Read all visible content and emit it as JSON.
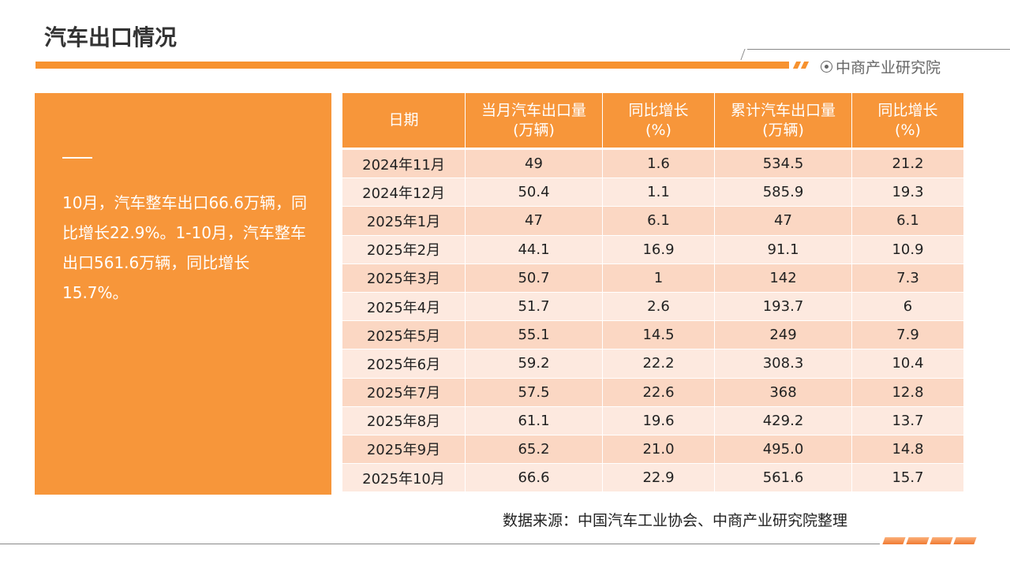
{
  "header": {
    "title": "汽车出口情况",
    "brand": "中商产业研究院"
  },
  "summary": "10月，汽车整车出口66.6万辆，同比增长22.9%。1-10月，汽车整车出口561.6万辆，同比增长15.7%。",
  "table": {
    "headers": [
      [
        "日期"
      ],
      [
        "当月汽车出口量",
        "(万辆)"
      ],
      [
        "同比增长",
        "(%)"
      ],
      [
        "累计汽车出口量",
        "(万辆)"
      ],
      [
        "同比增长",
        "(%)"
      ]
    ],
    "rows": [
      [
        "2024年11月",
        "49",
        "1.6",
        "534.5",
        "21.2"
      ],
      [
        "2024年12月",
        "50.4",
        "1.1",
        "585.9",
        "19.3"
      ],
      [
        "2025年1月",
        "47",
        "6.1",
        "47",
        "6.1"
      ],
      [
        "2025年2月",
        "44.1",
        "16.9",
        "91.1",
        "10.9"
      ],
      [
        "2025年3月",
        "50.7",
        "1",
        "142",
        "7.3"
      ],
      [
        "2025年4月",
        "51.7",
        "2.6",
        "193.7",
        "6"
      ],
      [
        "2025年5月",
        "55.1",
        "14.5",
        "249",
        "7.9"
      ],
      [
        "2025年6月",
        "59.2",
        "22.2",
        "308.3",
        "10.4"
      ],
      [
        "2025年7月",
        "57.5",
        "22.6",
        "368",
        "12.8"
      ],
      [
        "2025年8月",
        "61.1",
        "19.6",
        "429.2",
        "13.7"
      ],
      [
        "2025年9月",
        "65.2",
        "21.0",
        "495.0",
        "14.8"
      ],
      [
        "2025年10月",
        "66.6",
        "22.9",
        "561.6",
        "15.7"
      ]
    ]
  },
  "source": "数据来源：中国汽车工业协会、中商产业研究院整理",
  "colors": {
    "accent": "#f7963a",
    "row_dark": "#fbd7c3",
    "row_light": "#fde9df"
  }
}
